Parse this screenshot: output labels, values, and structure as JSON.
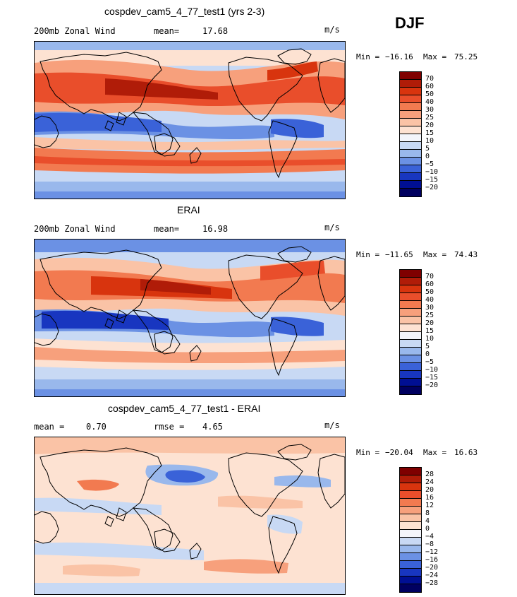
{
  "season": "DJF",
  "panels": [
    {
      "title": "cospdev_cam5_4_77_test1 (yrs 2-3)",
      "left_label": "200mb Zonal Wind",
      "stat_label": "mean=",
      "stat_value": "17.68",
      "units": "m/s",
      "min_label": "Min =",
      "min_value": "−16.16",
      "max_label": "Max =",
      "max_value": "75.25",
      "colorbar_ticks": [
        "70",
        "60",
        "50",
        "40",
        "30",
        "25",
        "20",
        "15",
        "10",
        "5",
        "0",
        "−5",
        "−10",
        "−15",
        "−20"
      ]
    },
    {
      "title": "ERAI",
      "left_label": "200mb Zonal Wind",
      "stat_label": "mean=",
      "stat_value": "16.98",
      "units": "m/s",
      "min_label": "Min =",
      "min_value": "−11.65",
      "max_label": "Max =",
      "max_value": "74.43",
      "colorbar_ticks": [
        "70",
        "60",
        "50",
        "40",
        "30",
        "25",
        "20",
        "15",
        "10",
        "5",
        "0",
        "−5",
        "−10",
        "−15",
        "−20"
      ]
    },
    {
      "title": "cospdev_cam5_4_77_test1 - ERAI",
      "left_label": "mean =",
      "left_value": "0.70",
      "stat_label": "rmse =",
      "stat_value": "4.65",
      "units": "m/s",
      "min_label": "Min =",
      "min_value": "−20.04",
      "max_label": "Max =",
      "max_value": "16.63",
      "colorbar_ticks": [
        "28",
        "24",
        "20",
        "16",
        "12",
        "8",
        "4",
        "0",
        "−4",
        "−8",
        "−12",
        "−16",
        "−20",
        "−24",
        "−28"
      ]
    }
  ],
  "colors": {
    "palette": [
      "#7f0000",
      "#b01c08",
      "#d8340e",
      "#e94e2b",
      "#f27a50",
      "#f7a07c",
      "#fac3a6",
      "#fde2d2",
      "#f3f5fb",
      "#c8d9f4",
      "#99b8ec",
      "#6b91e4",
      "#3a62d8",
      "#1836c0",
      "#000f93",
      "#000060"
    ]
  }
}
